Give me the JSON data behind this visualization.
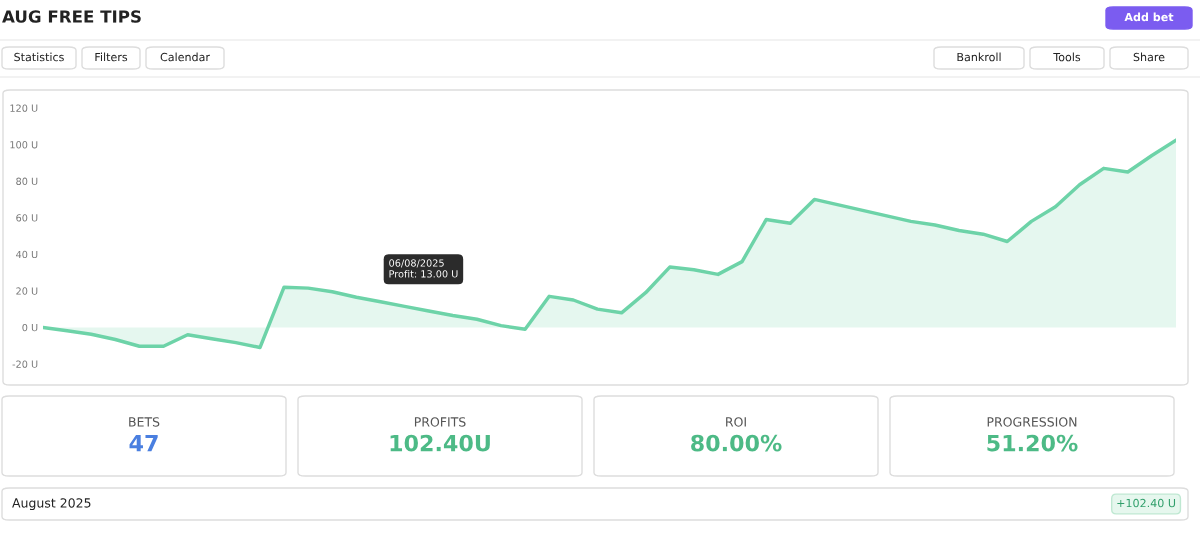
{
  "chart_data": [
    {
      "type": "area",
      "title": "AUG FREE TIPS",
      "categories": [
        null,
        null,
        null,
        null,
        null,
        null,
        null,
        null,
        null,
        null,
        null,
        null,
        null,
        null,
        null,
        null,
        null,
        null,
        null,
        null,
        null,
        null,
        null,
        null,
        null,
        null,
        null,
        null,
        null,
        null,
        null,
        null,
        null,
        null,
        null,
        null,
        null,
        null,
        null,
        null,
        null,
        null,
        null,
        null,
        null,
        null,
        null,
        null
      ],
      "series": [
        {
          "color": "#6dd3a8",
          "values": [
            0,
            -1.8,
            -3.7,
            -6.6,
            -10.3,
            -10.3,
            -4,
            -6.2,
            -8.3,
            -11,
            22,
            21.5,
            19.5,
            16.5,
            14,
            11.5,
            9,
            6.5,
            4.5,
            1,
            -1,
            17,
            15,
            10,
            8,
            19,
            33,
            31.5,
            29,
            36,
            59,
            57,
            70,
            67,
            64,
            61,
            58,
            56,
            53,
            51,
            47,
            58,
            66,
            78,
            87,
            85,
            94,
            102.4
          ]
        }
      ],
      "ylim": [
        -20,
        120
      ],
      "yticks": [
        {
          "value": -20,
          "label": "-20 U"
        },
        {
          "value": 0,
          "label": "0 U"
        },
        {
          "value": 20,
          "label": "20 U"
        },
        {
          "value": 40,
          "label": "40 U"
        },
        {
          "value": 60,
          "label": "60 U"
        },
        {
          "value": 80,
          "label": "80 U"
        },
        {
          "value": 100,
          "label": "100 U"
        },
        {
          "value": 120,
          "label": "120 U"
        }
      ],
      "tick_labels": "y",
      "annotations": [
        "Statistics",
        "Filters",
        "Calendar",
        "Bankroll",
        "Tools",
        "Share",
        "Add bet",
        "06/08/2025\nProfit: 13.00 U"
      ]
    },
    {
      "type": "other",
      "annotations": [
        "BETS",
        "47",
        "PROFITS",
        "102.40U",
        "ROI",
        "80.00%",
        "PROGRESSION",
        "51.20%",
        "August 2025",
        "+102.40 U"
      ]
    }
  ]
}
